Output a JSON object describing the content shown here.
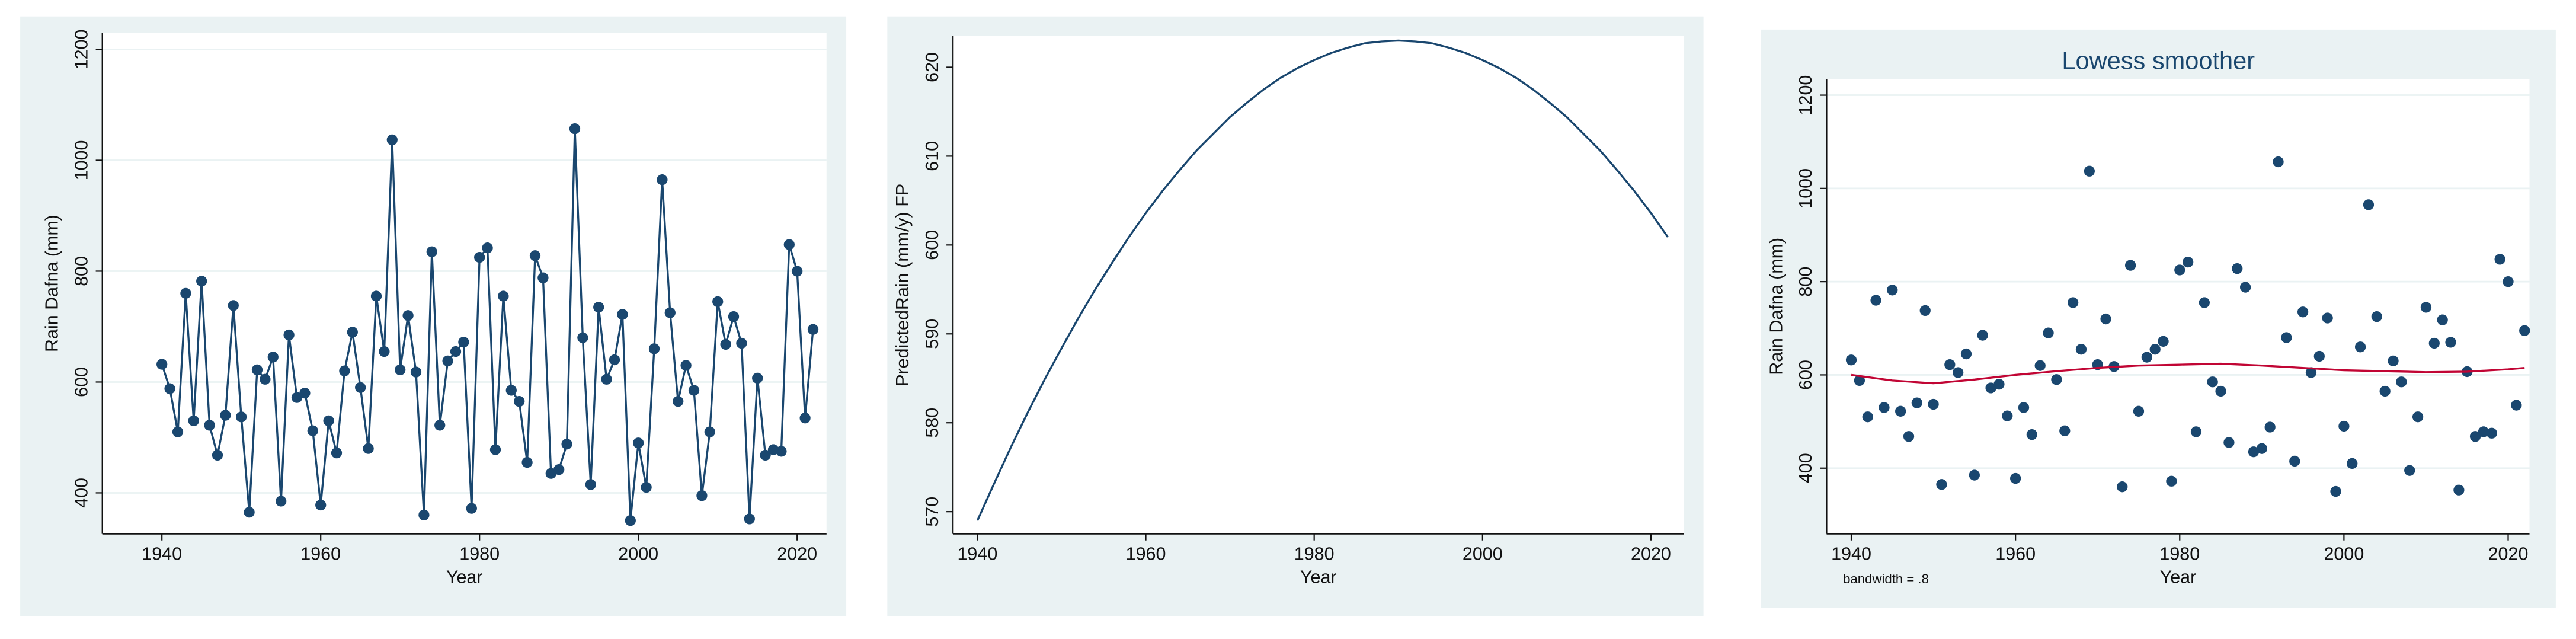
{
  "chart_data": [
    {
      "type": "line",
      "x_label": "Year",
      "y_label": "Rain Dafna (mm)",
      "xlim": [
        1932.5,
        2023.7
      ],
      "ylim": [
        326,
        1230
      ],
      "xticks": [
        1940,
        1960,
        1980,
        2000,
        2020
      ],
      "yticks": [
        400,
        600,
        800,
        1000,
        1200
      ],
      "grid": true,
      "series": [
        {
          "mode": "line-markers",
          "color": "#1a476f",
          "x": [
            1940,
            1941,
            1942,
            1943,
            1944,
            1945,
            1946,
            1947,
            1948,
            1949,
            1950,
            1951,
            1952,
            1953,
            1954,
            1955,
            1956,
            1957,
            1958,
            1959,
            1960,
            1961,
            1962,
            1963,
            1964,
            1965,
            1966,
            1967,
            1968,
            1969,
            1970,
            1971,
            1972,
            1973,
            1974,
            1975,
            1976,
            1977,
            1978,
            1979,
            1980,
            1981,
            1982,
            1983,
            1984,
            1985,
            1986,
            1987,
            1988,
            1989,
            1990,
            1991,
            1992,
            1993,
            1994,
            1995,
            1996,
            1997,
            1998,
            1999,
            2000,
            2001,
            2002,
            2003,
            2004,
            2005,
            2006,
            2007,
            2008,
            2009,
            2010,
            2011,
            2012,
            2013,
            2014,
            2015,
            2016,
            2017,
            2018,
            2019,
            2020,
            2021,
            2022
          ],
          "values": [
            632,
            588,
            510,
            760,
            530,
            782,
            522,
            468,
            540,
            738,
            537,
            365,
            622,
            605,
            645,
            385,
            685,
            572,
            580,
            512,
            378,
            530,
            472,
            620,
            690,
            590,
            480,
            755,
            655,
            1037,
            622,
            720,
            618,
            360,
            835,
            522,
            638,
            655,
            672,
            372,
            825,
            842,
            478,
            755,
            585,
            565,
            455,
            828,
            788,
            435,
            442,
            488,
            1057,
            680,
            415,
            735,
            605,
            640,
            722,
            350,
            490,
            410,
            660,
            965,
            725,
            565,
            630,
            585,
            395,
            510,
            745,
            668,
            718,
            670,
            353,
            607,
            468,
            478,
            475,
            848,
            800,
            535,
            695
          ]
        }
      ]
    },
    {
      "type": "line",
      "x_label": "Year",
      "y_label": "PredictedRain (mm/y) FP",
      "xlim": [
        1937.1,
        2023.9
      ],
      "ylim": [
        567.5,
        623.5
      ],
      "xticks": [
        1940,
        1960,
        1980,
        2000,
        2020
      ],
      "yticks": [
        570,
        580,
        590,
        600,
        610,
        620
      ],
      "grid": false,
      "series": [
        {
          "mode": "line",
          "color": "#1a476f",
          "x": [
            1940,
            1942,
            1944,
            1946,
            1948,
            1950,
            1952,
            1954,
            1956,
            1958,
            1960,
            1962,
            1964,
            1966,
            1968,
            1970,
            1972,
            1974,
            1976,
            1978,
            1980,
            1982,
            1984,
            1986,
            1988,
            1990,
            1992,
            1994,
            1996,
            1998,
            2000,
            2002,
            2004,
            2006,
            2008,
            2010,
            2012,
            2014,
            2016,
            2018,
            2020,
            2022
          ],
          "values": [
            569.0,
            573.2,
            577.3,
            581.2,
            584.9,
            588.4,
            591.8,
            595.0,
            598.0,
            600.9,
            603.6,
            606.1,
            608.4,
            610.6,
            612.5,
            614.4,
            616.0,
            617.5,
            618.8,
            619.9,
            620.8,
            621.6,
            622.2,
            622.7,
            622.9,
            623.0,
            622.9,
            622.7,
            622.2,
            621.6,
            620.8,
            619.9,
            618.8,
            617.5,
            616.0,
            614.4,
            612.5,
            610.6,
            608.4,
            606.1,
            603.6,
            600.9
          ]
        }
      ]
    },
    {
      "type": "scatter",
      "title": "Lowess smoother",
      "note": "bandwidth = .8",
      "x_label": "Year",
      "y_label": "Rain Dafna (mm)",
      "xlim": [
        1937,
        2022.6
      ],
      "ylim": [
        259,
        1235
      ],
      "xticks": [
        1940,
        1960,
        1980,
        2000,
        2020
      ],
      "yticks": [
        400,
        600,
        800,
        1000,
        1200
      ],
      "grid": true,
      "series": [
        {
          "mode": "markers",
          "color": "#1a476f",
          "x": [
            1940,
            1941,
            1942,
            1943,
            1944,
            1945,
            1946,
            1947,
            1948,
            1949,
            1950,
            1951,
            1952,
            1953,
            1954,
            1955,
            1956,
            1957,
            1958,
            1959,
            1960,
            1961,
            1962,
            1963,
            1964,
            1965,
            1966,
            1967,
            1968,
            1969,
            1970,
            1971,
            1972,
            1973,
            1974,
            1975,
            1976,
            1977,
            1978,
            1979,
            1980,
            1981,
            1982,
            1983,
            1984,
            1985,
            1986,
            1987,
            1988,
            1989,
            1990,
            1991,
            1992,
            1993,
            1994,
            1995,
            1996,
            1997,
            1998,
            1999,
            2000,
            2001,
            2002,
            2003,
            2004,
            2005,
            2006,
            2007,
            2008,
            2009,
            2010,
            2011,
            2012,
            2013,
            2014,
            2015,
            2016,
            2017,
            2018,
            2019,
            2020,
            2021,
            2022
          ],
          "values": [
            632,
            588,
            510,
            760,
            530,
            782,
            522,
            468,
            540,
            738,
            537,
            365,
            622,
            605,
            645,
            385,
            685,
            572,
            580,
            512,
            378,
            530,
            472,
            620,
            690,
            590,
            480,
            755,
            655,
            1037,
            622,
            720,
            618,
            360,
            835,
            522,
            638,
            655,
            672,
            372,
            825,
            842,
            478,
            755,
            585,
            565,
            455,
            828,
            788,
            435,
            442,
            488,
            1057,
            680,
            415,
            735,
            605,
            640,
            722,
            350,
            490,
            410,
            660,
            965,
            725,
            565,
            630,
            585,
            395,
            510,
            745,
            668,
            718,
            670,
            353,
            607,
            468,
            478,
            475,
            848,
            800,
            535,
            695
          ]
        },
        {
          "mode": "line",
          "color": "#c10534",
          "x": [
            1940,
            1945,
            1950,
            1955,
            1960,
            1965,
            1970,
            1975,
            1980,
            1985,
            1990,
            1995,
            2000,
            2005,
            2010,
            2015,
            2020,
            2022
          ],
          "values": [
            600,
            588,
            582,
            590,
            600,
            608,
            615,
            620,
            622,
            624,
            620,
            615,
            610,
            608,
            606,
            607,
            612,
            615
          ]
        }
      ]
    }
  ]
}
